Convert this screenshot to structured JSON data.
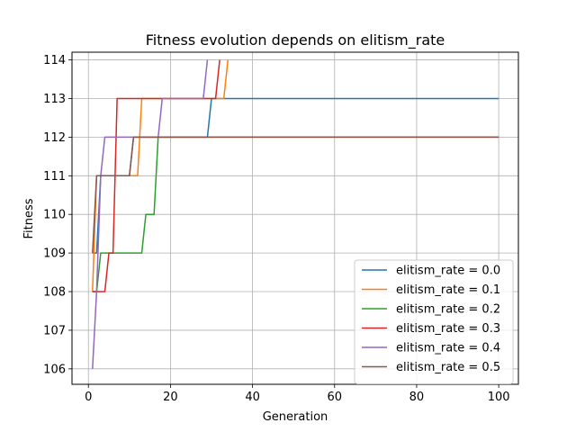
{
  "chart_data": {
    "type": "line",
    "title": "Fitness evolution depends on elitism_rate",
    "xlabel": "Generation",
    "ylabel": "Fitness",
    "xlim": [
      -4,
      104.8
    ],
    "ylim": [
      105.6,
      114.2
    ],
    "xticks": [
      0,
      20,
      40,
      60,
      80,
      100
    ],
    "yticks": [
      106,
      107,
      108,
      109,
      110,
      111,
      112,
      113,
      114
    ],
    "grid": true,
    "legend_position": "lower-right",
    "series": [
      {
        "name": "elitism_rate = 0.0",
        "color": "#1f77b4",
        "x": [
          1,
          2,
          3,
          10,
          11,
          29,
          30,
          100
        ],
        "y": [
          109,
          109,
          111,
          111,
          112,
          112,
          113,
          113
        ]
      },
      {
        "name": "elitism_rate = 0.1",
        "color": "#ff7f0e",
        "x": [
          1,
          2,
          12,
          13,
          33,
          34
        ],
        "y": [
          108,
          111,
          111,
          113,
          113,
          114
        ]
      },
      {
        "name": "elitism_rate = 0.2",
        "color": "#2ca02c",
        "x": [
          1,
          2,
          3,
          4,
          13,
          14,
          16,
          17,
          100
        ],
        "y": [
          108,
          108,
          109,
          109,
          109,
          110,
          110,
          112,
          112
        ]
      },
      {
        "name": "elitism_rate = 0.3",
        "color": "#d62728",
        "x": [
          1,
          4,
          5,
          6,
          7,
          31,
          32
        ],
        "y": [
          108,
          108,
          109,
          109,
          113,
          113,
          114
        ]
      },
      {
        "name": "elitism_rate = 0.4",
        "color": "#9467bd",
        "x": [
          1,
          2,
          3,
          4,
          17,
          18,
          28,
          29
        ],
        "y": [
          106,
          108,
          111,
          112,
          112,
          113,
          113,
          114
        ]
      },
      {
        "name": "elitism_rate = 0.5",
        "color": "#8c564b",
        "x": [
          1,
          2,
          10,
          11,
          100
        ],
        "y": [
          109,
          111,
          111,
          112,
          112
        ]
      }
    ]
  }
}
